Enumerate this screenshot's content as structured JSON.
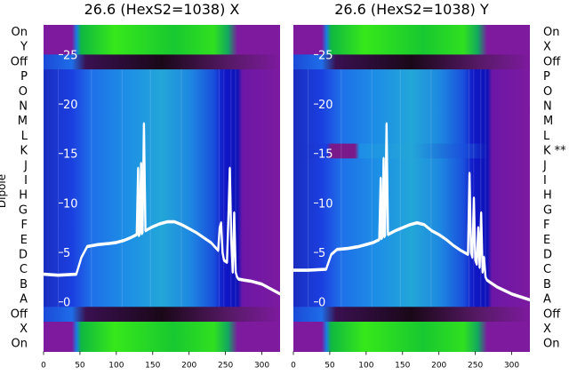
{
  "chart_data": [
    {
      "type": "heatmap",
      "title": "26.6 (HexS2=1038) X",
      "ylabel": "Dipole",
      "row_labels": [
        "On",
        "Y",
        "Off",
        "P",
        "O",
        "N",
        "M",
        "L",
        "K",
        "J",
        "I",
        "H",
        "G",
        "F",
        "E",
        "D",
        "C",
        "B",
        "A",
        "Off",
        "X",
        "On"
      ],
      "x_ticks": [
        0,
        50,
        100,
        150,
        200,
        250,
        300
      ],
      "xlim": [
        0,
        325
      ],
      "overlay_ticks": [
        "25",
        "20",
        "15",
        "10",
        "5",
        "0"
      ],
      "overlay_ylim": [
        -5,
        28
      ],
      "series": [
        {
          "x": [
            0,
            20,
            45,
            52,
            60,
            75,
            90,
            100,
            110,
            120,
            128,
            130,
            131,
            132,
            134,
            135,
            136,
            138,
            140,
            145,
            150,
            160,
            170,
            180,
            190,
            200,
            210,
            220,
            230,
            240,
            242,
            244,
            246,
            248,
            252,
            254,
            256,
            258,
            260,
            262,
            264,
            266,
            268,
            275,
            285,
            300,
            325
          ],
          "y": [
            2.8,
            2.7,
            2.8,
            4.5,
            5.6,
            5.8,
            5.9,
            6.0,
            6.2,
            6.5,
            6.8,
            13.5,
            6.7,
            6.8,
            14.0,
            6.9,
            7.0,
            18.0,
            7.2,
            7.4,
            7.6,
            7.9,
            8.1,
            8.1,
            7.8,
            7.4,
            7.0,
            6.5,
            6.0,
            5.2,
            7.5,
            8.0,
            5.0,
            4.2,
            4.0,
            8.5,
            13.5,
            6.0,
            3.0,
            9.0,
            3.0,
            2.5,
            2.3,
            2.2,
            2.1,
            1.8,
            0.8
          ]
        }
      ]
    },
    {
      "type": "heatmap",
      "title": "26.6 (HexS2=1038) Y",
      "row_labels": [
        "On",
        "X",
        "Off",
        "P",
        "O",
        "N",
        "M",
        "L",
        "K **",
        "J",
        "I",
        "H",
        "G",
        "F",
        "E",
        "D",
        "C",
        "B",
        "A",
        "Off",
        "X",
        "On"
      ],
      "x_ticks": [
        0,
        50,
        100,
        150,
        200,
        250,
        300
      ],
      "xlim": [
        0,
        325
      ],
      "overlay_ticks": [
        "25",
        "20",
        "15",
        "10",
        "5",
        "0"
      ],
      "overlay_ylim": [
        -5,
        28
      ],
      "series": [
        {
          "x": [
            0,
            20,
            45,
            52,
            60,
            75,
            90,
            100,
            110,
            118,
            120,
            121,
            122,
            124,
            125,
            126,
            128,
            130,
            140,
            150,
            160,
            170,
            180,
            190,
            200,
            210,
            220,
            230,
            240,
            242,
            244,
            246,
            248,
            250,
            252,
            254,
            256,
            258,
            260,
            262,
            264,
            266,
            270,
            280,
            300,
            325
          ],
          "y": [
            3.2,
            3.2,
            3.3,
            4.8,
            5.3,
            5.4,
            5.6,
            5.8,
            6.0,
            6.3,
            12.5,
            6.4,
            6.5,
            14.5,
            6.6,
            6.7,
            18.0,
            6.8,
            7.2,
            7.5,
            7.8,
            8.0,
            7.8,
            7.2,
            6.8,
            6.3,
            5.7,
            5.2,
            4.8,
            13.0,
            5.0,
            4.5,
            10.5,
            4.2,
            3.8,
            7.5,
            3.5,
            9.0,
            3.0,
            4.5,
            2.5,
            2.2,
            2.0,
            1.5,
            0.8,
            0.2
          ]
        }
      ]
    }
  ]
}
